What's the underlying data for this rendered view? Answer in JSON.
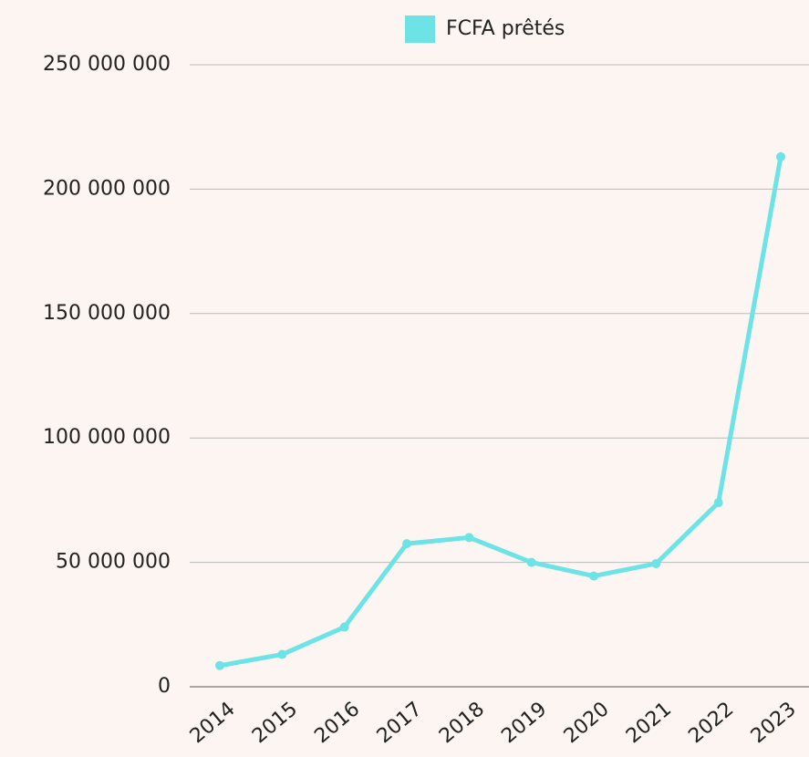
{
  "chart_data": {
    "type": "line",
    "categories": [
      "2014",
      "2015",
      "2016",
      "2017",
      "2018",
      "2019",
      "2020",
      "2021",
      "2022",
      "2023"
    ],
    "series": [
      {
        "name": "FCFA prêtés",
        "color": "#6de3e6",
        "values": [
          8500000,
          13000000,
          24000000,
          57500000,
          60000000,
          50000000,
          44500000,
          49500000,
          74000000,
          213000000
        ]
      }
    ],
    "ylim": [
      0,
      250000000
    ],
    "yticks": [
      0,
      {
        "value": 50000000,
        "label": "50 000 000"
      },
      {
        "value": 100000000,
        "label": "100 000 000"
      },
      {
        "value": 150000000,
        "label": "150 000 000"
      },
      {
        "value": 200000000,
        "label": "200 000 000"
      },
      {
        "value": 250000000,
        "label": "250 000 000"
      }
    ],
    "grid": true,
    "legend": "top"
  }
}
